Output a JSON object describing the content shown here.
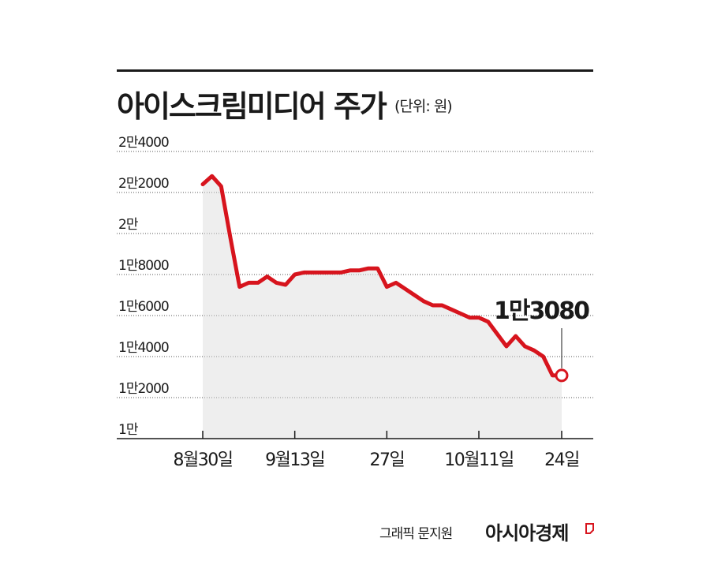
{
  "title": "아이스크림미디어 주가",
  "unit_label": "(단위: 원)",
  "credit": "그래픽 문지원",
  "logo_text": "아시아경제",
  "colors": {
    "line": "#d7141d",
    "fill": "#eeeeee",
    "grid": "#555555",
    "text": "#1a1a1a"
  },
  "chart_data": {
    "type": "area",
    "title": "아이스크림미디어 주가",
    "unit": "(단위: 원)",
    "ylim": [
      10000,
      24000
    ],
    "y_ticks": [
      {
        "value": 24000,
        "label": "2만4000"
      },
      {
        "value": 22000,
        "label": "2만2000"
      },
      {
        "value": 20000,
        "label": "2만"
      },
      {
        "value": 18000,
        "label": "1만8000"
      },
      {
        "value": 16000,
        "label": "1만6000"
      },
      {
        "value": 14000,
        "label": "1만4000"
      },
      {
        "value": 12000,
        "label": "1만2000"
      },
      {
        "value": 10000,
        "label": "1만"
      }
    ],
    "x_ticks": [
      {
        "index": 0,
        "label": "8월30일"
      },
      {
        "index": 10,
        "label": "9월13일"
      },
      {
        "index": 20,
        "label": "27일"
      },
      {
        "index": 30,
        "label": "10월11일"
      },
      {
        "index": 39,
        "label": "24일"
      }
    ],
    "values": [
      22400,
      22800,
      22300,
      19800,
      17400,
      17600,
      17600,
      17900,
      17600,
      17500,
      18000,
      18100,
      18100,
      18100,
      18100,
      18100,
      18200,
      18200,
      18300,
      18300,
      17400,
      17600,
      17300,
      17000,
      16700,
      16500,
      16500,
      16300,
      16100,
      15900,
      15900,
      15700,
      15100,
      14500,
      15000,
      14500,
      14300,
      14000,
      13080,
      13080
    ],
    "last_label": "1만3080",
    "grid": true,
    "legend": "none"
  }
}
